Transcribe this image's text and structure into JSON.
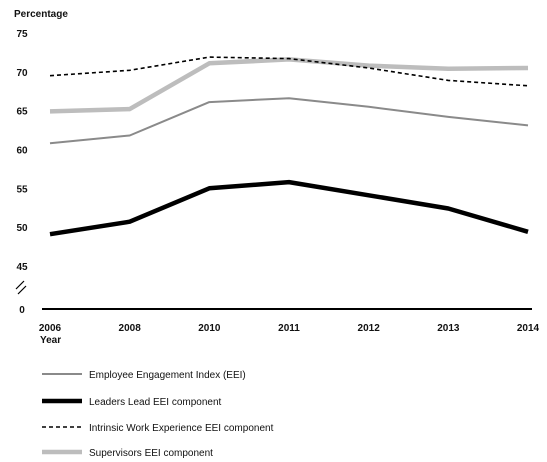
{
  "chart_data": {
    "type": "line",
    "ylabel": "Percentage",
    "xlabel": "Year",
    "categories": [
      "2006",
      "2008",
      "2010",
      "2011",
      "2012",
      "2013",
      "2014"
    ],
    "y_ticks": [
      "0",
      "45",
      "50",
      "55",
      "60",
      "65",
      "70",
      "75"
    ],
    "axis_break": true,
    "ylim": [
      45,
      75
    ],
    "grid": false,
    "legend_position": "bottom",
    "series": [
      {
        "name": "Employee Engagement Index (EEI)",
        "style": "thin-gray",
        "color": "#8a8a8a",
        "values": [
          60.8,
          61.8,
          66.1,
          66.6,
          65.5,
          64.2,
          63.1
        ]
      },
      {
        "name": "Leaders Lead EEI component",
        "style": "thick-black",
        "color": "#000000",
        "values": [
          49.1,
          50.7,
          55.0,
          55.8,
          54.1,
          52.4,
          49.4
        ]
      },
      {
        "name": "Intrinsic Work Experience EEI component",
        "style": "dashed-black",
        "color": "#000000",
        "values": [
          69.5,
          70.2,
          71.9,
          71.7,
          70.5,
          68.9,
          68.2
        ]
      },
      {
        "name": "Supervisors EEI component",
        "style": "thick-light-gray",
        "color": "#bdbdbd",
        "values": [
          64.9,
          65.2,
          71.1,
          71.6,
          70.8,
          70.4,
          70.5
        ]
      }
    ]
  }
}
